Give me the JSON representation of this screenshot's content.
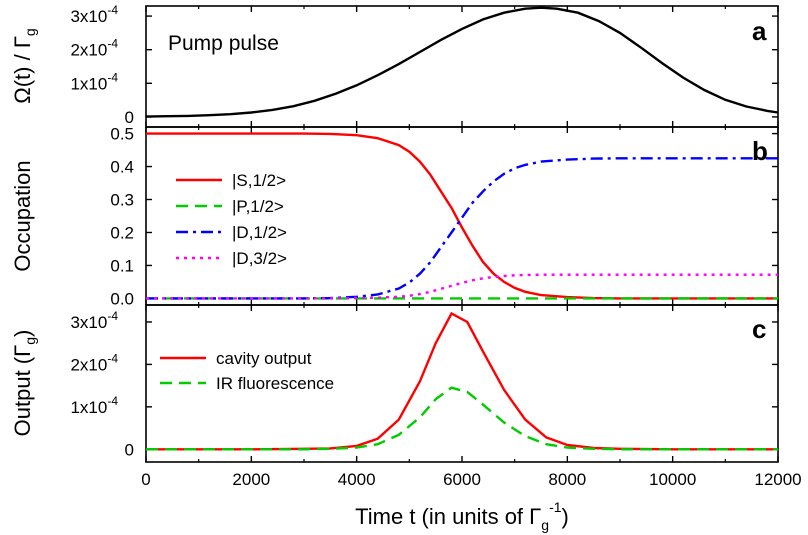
{
  "figure": {
    "xlabel": "Time t (in units of Γg−1)",
    "x_ticks": [
      "0",
      "2000",
      "4000",
      "6000",
      "8000",
      "10000",
      "12000"
    ],
    "xlim": [
      0,
      12000
    ]
  },
  "chart_data": [
    {
      "type": "line",
      "panel": "a",
      "annotation": "Pump pulse",
      "ylabel": "Ω(t) / Γg",
      "ylim": [
        -3e-05,
        0.00033
      ],
      "y_ticks": [
        {
          "mantissa": "0",
          "exp": ""
        },
        {
          "mantissa": "1x10",
          "exp": "-4"
        },
        {
          "mantissa": "2x10",
          "exp": "-4"
        },
        {
          "mantissa": "3x10",
          "exp": "-4"
        }
      ],
      "x": [
        0,
        400,
        800,
        1200,
        1600,
        2000,
        2400,
        2800,
        3200,
        3600,
        4000,
        4400,
        4800,
        5200,
        5600,
        6000,
        6400,
        6800,
        7200,
        7500,
        7800,
        8200,
        8600,
        9000,
        9400,
        9800,
        10200,
        10600,
        11000,
        11400,
        11800,
        12000
      ],
      "series": [
        {
          "name": "",
          "color": "#000000",
          "values": [
            1e-06,
            2e-06,
            3e-06,
            5e-06,
            8e-06,
            1.3e-05,
            2.1e-05,
            3.2e-05,
            4.8e-05,
            6.9e-05,
            9.4e-05,
            0.000124,
            0.000157,
            0.000193,
            0.000229,
            0.000262,
            0.00029,
            0.00031,
            0.000322,
            0.000325,
            0.000322,
            0.00031,
            0.000285,
            0.00025,
            0.000206,
            0.00016,
            0.000117,
            8e-05,
            5.1e-05,
            3.1e-05,
            1.8e-05,
            1.3e-05
          ]
        }
      ]
    },
    {
      "type": "line",
      "panel": "b",
      "ylabel": "Occupation",
      "ylim": [
        -0.02,
        0.52
      ],
      "y_ticks": [
        {
          "mantissa": "0.0",
          "exp": ""
        },
        {
          "mantissa": "0.1",
          "exp": ""
        },
        {
          "mantissa": "0.2",
          "exp": ""
        },
        {
          "mantissa": "0.3",
          "exp": ""
        },
        {
          "mantissa": "0.4",
          "exp": ""
        },
        {
          "mantissa": "0.5",
          "exp": ""
        }
      ],
      "legend_position": "left",
      "x": [
        0,
        500,
        1000,
        1500,
        2000,
        2500,
        3000,
        3500,
        4000,
        4400,
        4800,
        5000,
        5200,
        5400,
        5600,
        5800,
        6000,
        6200,
        6400,
        6600,
        6800,
        7000,
        7200,
        7500,
        8000,
        8500,
        9000,
        9500,
        10000,
        11000,
        12000
      ],
      "series": [
        {
          "name": "|S,1/2>",
          "color": "#ff0000",
          "dash": "solid",
          "values": [
            0.5,
            0.5,
            0.5,
            0.5,
            0.5,
            0.5,
            0.5,
            0.499,
            0.495,
            0.486,
            0.465,
            0.445,
            0.415,
            0.375,
            0.325,
            0.275,
            0.215,
            0.16,
            0.11,
            0.075,
            0.05,
            0.032,
            0.02,
            0.01,
            0.004,
            0.001,
            0,
            0,
            0,
            0,
            0
          ]
        },
        {
          "name": "|P,1/2>",
          "color": "#00cc00",
          "dash": "dash",
          "values": [
            0,
            0,
            0,
            0,
            0,
            0,
            0,
            0,
            0,
            0,
            0,
            0,
            0,
            0,
            0,
            0,
            0,
            0,
            0,
            0,
            0,
            0,
            0,
            0,
            0,
            0,
            0,
            0,
            0,
            0,
            0
          ]
        },
        {
          "name": "|D,1/2>",
          "color": "#0000ff",
          "dash": "dashdot",
          "values": [
            0,
            0,
            0,
            0,
            0,
            0,
            0,
            0.001,
            0.005,
            0.012,
            0.03,
            0.048,
            0.075,
            0.11,
            0.155,
            0.2,
            0.245,
            0.29,
            0.325,
            0.355,
            0.378,
            0.395,
            0.405,
            0.415,
            0.421,
            0.424,
            0.425,
            0.425,
            0.425,
            0.425,
            0.425
          ]
        },
        {
          "name": "|D,3/2>",
          "color": "#ff00ff",
          "dash": "dot",
          "values": [
            0,
            0,
            0,
            0,
            0,
            0,
            0,
            0,
            0.001,
            0.002,
            0.005,
            0.008,
            0.013,
            0.02,
            0.029,
            0.038,
            0.047,
            0.055,
            0.061,
            0.065,
            0.068,
            0.07,
            0.071,
            0.072,
            0.072,
            0.072,
            0.072,
            0.072,
            0.072,
            0.072,
            0.072
          ]
        }
      ]
    },
    {
      "type": "line",
      "panel": "c",
      "ylabel": "Output (Γg)",
      "ylim": [
        -3e-05,
        0.00034
      ],
      "y_ticks": [
        {
          "mantissa": "0",
          "exp": ""
        },
        {
          "mantissa": "1x10",
          "exp": "-4"
        },
        {
          "mantissa": "2x10",
          "exp": "-4"
        },
        {
          "mantissa": "3x10",
          "exp": "-4"
        }
      ],
      "legend_position": "top-left",
      "x": [
        0,
        1000,
        2000,
        3000,
        3500,
        4000,
        4400,
        4800,
        5200,
        5500,
        5800,
        6100,
        6400,
        6800,
        7200,
        7600,
        8000,
        8500,
        9000,
        10000,
        11000,
        12000
      ],
      "series": [
        {
          "name": "cavity output",
          "color": "#ff0000",
          "dash": "solid",
          "values": [
            0,
            0,
            0,
            1e-06,
            2e-06,
            8e-06,
            2.5e-05,
            7e-05,
            0.00016,
            0.00025,
            0.00032,
            0.0003,
            0.00023,
            0.00014,
            7e-05,
            2.8e-05,
            1e-05,
            3e-06,
            1e-06,
            0,
            0,
            0
          ]
        },
        {
          "name": "IR fluorescence",
          "color": "#00cc00",
          "dash": "dash",
          "values": [
            0,
            0,
            0,
            0,
            1e-06,
            4e-06,
            1.2e-05,
            3.4e-05,
            7.5e-05,
            0.000118,
            0.000145,
            0.000135,
            0.000105,
            6.3e-05,
            3.1e-05,
            1.2e-05,
            4e-06,
            1e-06,
            0,
            0,
            0,
            0
          ]
        }
      ]
    }
  ]
}
